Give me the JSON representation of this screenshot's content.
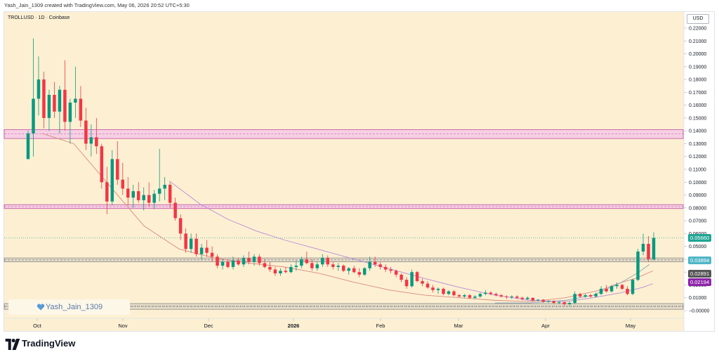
{
  "header": {
    "created_by": "Yash_Jain_1309 created with TradingView.com, May 06, 2026 20:52 UTC+5:30"
  },
  "symbol": {
    "label": "TROLLUSD · 1D · Coinbase"
  },
  "currency": "USD",
  "watermark": {
    "text": "Yash_Jain_1309",
    "icon": "heart-icon"
  },
  "footer": {
    "brand": "TradingView",
    "logo_icon": "tradingview-logo-icon"
  },
  "colors": {
    "background": "#fdf0d2",
    "up": "#089981",
    "down": "#f23645",
    "zone_pink": "#f3c6e8",
    "zone_pink_border": "#c04ea0",
    "zone_grey": "#ddd6c6",
    "ma_fast": "#d98a80",
    "ma_slow": "#b88ad8",
    "ma_grey": "#8aa6b8",
    "badge_current": "#1fa595",
    "badge_support": "#4fb6c8",
    "badge_grey": "#555555",
    "badge_purple": "#8e24aa"
  },
  "price_badges": [
    {
      "value": "0.05660",
      "price": 0.0566,
      "color": "#1fa595"
    },
    {
      "value": "0.03894",
      "price": 0.03894,
      "color": "#4fb6c8"
    },
    {
      "value": "0.02891",
      "price": 0.02891,
      "color": "#555555"
    },
    {
      "value": "0.02194",
      "price": 0.02194,
      "color": "#8e24aa"
    }
  ],
  "chart_data": {
    "type": "candlestick",
    "symbol": "TROLLUSD",
    "interval": "1D",
    "exchange": "Coinbase",
    "ylim": [
      0.0,
      0.22
    ],
    "y_ticks": [
      "0.22000",
      "0.21000",
      "0.20000",
      "0.19000",
      "0.18000",
      "0.17000",
      "0.16000",
      "0.15000",
      "0.14000",
      "0.13000",
      "0.12000",
      "0.11000",
      "0.10000",
      "0.09000",
      "0.08000",
      "0.07000",
      "0.06000",
      "0.05000",
      "0.04000",
      "0.03000",
      "0.02000",
      "0.01000",
      "0.00000"
    ],
    "x_ticks": [
      "Oct",
      "Nov",
      "Dec",
      "2026",
      "Feb",
      "Mar",
      "Apr",
      "May"
    ],
    "x_tick_days": [
      24,
      146,
      268,
      389,
      513,
      624,
      748,
      869
    ],
    "zones": [
      {
        "from": 0.134,
        "to": 0.141,
        "type": "resistance"
      },
      {
        "from": 0.0795,
        "to": 0.0825,
        "type": "resistance"
      },
      {
        "from": 0.038,
        "to": 0.041,
        "type": "support"
      },
      {
        "from": 0.001,
        "to": 0.0055,
        "type": "support"
      }
    ],
    "dotted_lines": [
      0.0566,
      0.0035
    ],
    "candles": [
      {
        "o": 0.118,
        "h": 0.14,
        "l": 0.118,
        "c": 0.138
      },
      {
        "o": 0.138,
        "h": 0.212,
        "l": 0.12,
        "c": 0.165
      },
      {
        "o": 0.165,
        "h": 0.198,
        "l": 0.152,
        "c": 0.18
      },
      {
        "o": 0.18,
        "h": 0.186,
        "l": 0.142,
        "c": 0.15
      },
      {
        "o": 0.15,
        "h": 0.172,
        "l": 0.14,
        "c": 0.168
      },
      {
        "o": 0.168,
        "h": 0.178,
        "l": 0.15,
        "c": 0.155
      },
      {
        "o": 0.155,
        "h": 0.175,
        "l": 0.138,
        "c": 0.172
      },
      {
        "o": 0.172,
        "h": 0.195,
        "l": 0.14,
        "c": 0.147
      },
      {
        "o": 0.147,
        "h": 0.165,
        "l": 0.13,
        "c": 0.162
      },
      {
        "o": 0.162,
        "h": 0.19,
        "l": 0.15,
        "c": 0.165
      },
      {
        "o": 0.165,
        "h": 0.175,
        "l": 0.143,
        "c": 0.148
      },
      {
        "o": 0.148,
        "h": 0.158,
        "l": 0.125,
        "c": 0.13
      },
      {
        "o": 0.13,
        "h": 0.145,
        "l": 0.12,
        "c": 0.135
      },
      {
        "o": 0.135,
        "h": 0.15,
        "l": 0.122,
        "c": 0.128
      },
      {
        "o": 0.128,
        "h": 0.13,
        "l": 0.095,
        "c": 0.1
      },
      {
        "o": 0.1,
        "h": 0.112,
        "l": 0.075,
        "c": 0.085
      },
      {
        "o": 0.085,
        "h": 0.125,
        "l": 0.082,
        "c": 0.118
      },
      {
        "o": 0.118,
        "h": 0.132,
        "l": 0.098,
        "c": 0.102
      },
      {
        "o": 0.102,
        "h": 0.115,
        "l": 0.09,
        "c": 0.095
      },
      {
        "o": 0.095,
        "h": 0.104,
        "l": 0.082,
        "c": 0.088
      },
      {
        "o": 0.088,
        "h": 0.098,
        "l": 0.08,
        "c": 0.093
      },
      {
        "o": 0.093,
        "h": 0.1,
        "l": 0.084,
        "c": 0.086
      },
      {
        "o": 0.086,
        "h": 0.096,
        "l": 0.078,
        "c": 0.09
      },
      {
        "o": 0.09,
        "h": 0.1,
        "l": 0.081,
        "c": 0.084
      },
      {
        "o": 0.084,
        "h": 0.094,
        "l": 0.079,
        "c": 0.091
      },
      {
        "o": 0.091,
        "h": 0.126,
        "l": 0.085,
        "c": 0.095
      },
      {
        "o": 0.095,
        "h": 0.104,
        "l": 0.086,
        "c": 0.098
      },
      {
        "o": 0.098,
        "h": 0.1,
        "l": 0.08,
        "c": 0.084
      },
      {
        "o": 0.084,
        "h": 0.088,
        "l": 0.07,
        "c": 0.072
      },
      {
        "o": 0.072,
        "h": 0.075,
        "l": 0.055,
        "c": 0.06
      },
      {
        "o": 0.06,
        "h": 0.064,
        "l": 0.045,
        "c": 0.048
      },
      {
        "o": 0.048,
        "h": 0.06,
        "l": 0.045,
        "c": 0.056
      },
      {
        "o": 0.056,
        "h": 0.06,
        "l": 0.042,
        "c": 0.044
      },
      {
        "o": 0.044,
        "h": 0.052,
        "l": 0.04,
        "c": 0.049
      },
      {
        "o": 0.049,
        "h": 0.055,
        "l": 0.042,
        "c": 0.045
      },
      {
        "o": 0.045,
        "h": 0.05,
        "l": 0.038,
        "c": 0.042
      },
      {
        "o": 0.042,
        "h": 0.044,
        "l": 0.033,
        "c": 0.035
      },
      {
        "o": 0.035,
        "h": 0.04,
        "l": 0.032,
        "c": 0.038
      },
      {
        "o": 0.038,
        "h": 0.04,
        "l": 0.033,
        "c": 0.034
      },
      {
        "o": 0.034,
        "h": 0.042,
        "l": 0.032,
        "c": 0.039
      },
      {
        "o": 0.039,
        "h": 0.041,
        "l": 0.035,
        "c": 0.036
      },
      {
        "o": 0.036,
        "h": 0.043,
        "l": 0.034,
        "c": 0.041
      },
      {
        "o": 0.041,
        "h": 0.046,
        "l": 0.036,
        "c": 0.038
      },
      {
        "o": 0.038,
        "h": 0.044,
        "l": 0.035,
        "c": 0.042
      },
      {
        "o": 0.042,
        "h": 0.044,
        "l": 0.035,
        "c": 0.037
      },
      {
        "o": 0.037,
        "h": 0.04,
        "l": 0.033,
        "c": 0.034
      },
      {
        "o": 0.034,
        "h": 0.038,
        "l": 0.03,
        "c": 0.032
      },
      {
        "o": 0.032,
        "h": 0.034,
        "l": 0.027,
        "c": 0.029
      },
      {
        "o": 0.029,
        "h": 0.033,
        "l": 0.027,
        "c": 0.031
      },
      {
        "o": 0.031,
        "h": 0.034,
        "l": 0.029,
        "c": 0.03
      },
      {
        "o": 0.03,
        "h": 0.036,
        "l": 0.029,
        "c": 0.034
      },
      {
        "o": 0.034,
        "h": 0.039,
        "l": 0.031,
        "c": 0.035
      },
      {
        "o": 0.035,
        "h": 0.042,
        "l": 0.033,
        "c": 0.04
      },
      {
        "o": 0.04,
        "h": 0.046,
        "l": 0.036,
        "c": 0.037
      },
      {
        "o": 0.037,
        "h": 0.04,
        "l": 0.031,
        "c": 0.033
      },
      {
        "o": 0.033,
        "h": 0.038,
        "l": 0.031,
        "c": 0.036
      },
      {
        "o": 0.036,
        "h": 0.044,
        "l": 0.034,
        "c": 0.041
      },
      {
        "o": 0.041,
        "h": 0.043,
        "l": 0.034,
        "c": 0.036
      },
      {
        "o": 0.036,
        "h": 0.038,
        "l": 0.032,
        "c": 0.034
      },
      {
        "o": 0.034,
        "h": 0.037,
        "l": 0.031,
        "c": 0.035
      },
      {
        "o": 0.035,
        "h": 0.036,
        "l": 0.03,
        "c": 0.031
      },
      {
        "o": 0.031,
        "h": 0.034,
        "l": 0.028,
        "c": 0.033
      },
      {
        "o": 0.033,
        "h": 0.035,
        "l": 0.029,
        "c": 0.03
      },
      {
        "o": 0.03,
        "h": 0.033,
        "l": 0.026,
        "c": 0.028
      },
      {
        "o": 0.028,
        "h": 0.034,
        "l": 0.027,
        "c": 0.033
      },
      {
        "o": 0.033,
        "h": 0.042,
        "l": 0.031,
        "c": 0.038
      },
      {
        "o": 0.038,
        "h": 0.042,
        "l": 0.034,
        "c": 0.036
      },
      {
        "o": 0.036,
        "h": 0.038,
        "l": 0.032,
        "c": 0.034
      },
      {
        "o": 0.034,
        "h": 0.036,
        "l": 0.03,
        "c": 0.032
      },
      {
        "o": 0.032,
        "h": 0.034,
        "l": 0.029,
        "c": 0.031
      },
      {
        "o": 0.031,
        "h": 0.032,
        "l": 0.026,
        "c": 0.028
      },
      {
        "o": 0.028,
        "h": 0.029,
        "l": 0.022,
        "c": 0.024
      },
      {
        "o": 0.024,
        "h": 0.026,
        "l": 0.017,
        "c": 0.019
      },
      {
        "o": 0.019,
        "h": 0.032,
        "l": 0.018,
        "c": 0.03
      },
      {
        "o": 0.03,
        "h": 0.031,
        "l": 0.022,
        "c": 0.023
      },
      {
        "o": 0.023,
        "h": 0.025,
        "l": 0.019,
        "c": 0.021
      },
      {
        "o": 0.021,
        "h": 0.023,
        "l": 0.017,
        "c": 0.018
      },
      {
        "o": 0.018,
        "h": 0.02,
        "l": 0.014,
        "c": 0.016
      },
      {
        "o": 0.016,
        "h": 0.018,
        "l": 0.013,
        "c": 0.017
      },
      {
        "o": 0.017,
        "h": 0.018,
        "l": 0.012,
        "c": 0.013
      },
      {
        "o": 0.013,
        "h": 0.016,
        "l": 0.012,
        "c": 0.015
      },
      {
        "o": 0.015,
        "h": 0.016,
        "l": 0.011,
        "c": 0.012
      },
      {
        "o": 0.012,
        "h": 0.013,
        "l": 0.01,
        "c": 0.011
      },
      {
        "o": 0.011,
        "h": 0.013,
        "l": 0.01,
        "c": 0.012
      },
      {
        "o": 0.012,
        "h": 0.013,
        "l": 0.009,
        "c": 0.01
      },
      {
        "o": 0.01,
        "h": 0.012,
        "l": 0.009,
        "c": 0.011
      },
      {
        "o": 0.011,
        "h": 0.014,
        "l": 0.01,
        "c": 0.013
      },
      {
        "o": 0.013,
        "h": 0.016,
        "l": 0.012,
        "c": 0.014
      },
      {
        "o": 0.014,
        "h": 0.015,
        "l": 0.012,
        "c": 0.013
      },
      {
        "o": 0.013,
        "h": 0.014,
        "l": 0.011,
        "c": 0.012
      },
      {
        "o": 0.012,
        "h": 0.013,
        "l": 0.01,
        "c": 0.011
      },
      {
        "o": 0.011,
        "h": 0.012,
        "l": 0.009,
        "c": 0.0105
      },
      {
        "o": 0.0105,
        "h": 0.012,
        "l": 0.009,
        "c": 0.011
      },
      {
        "o": 0.011,
        "h": 0.012,
        "l": 0.009,
        "c": 0.01
      },
      {
        "o": 0.01,
        "h": 0.011,
        "l": 0.008,
        "c": 0.009
      },
      {
        "o": 0.009,
        "h": 0.011,
        "l": 0.008,
        "c": 0.01
      },
      {
        "o": 0.01,
        "h": 0.01,
        "l": 0.007,
        "c": 0.008
      },
      {
        "o": 0.008,
        "h": 0.009,
        "l": 0.007,
        "c": 0.0085
      },
      {
        "o": 0.0085,
        "h": 0.009,
        "l": 0.006,
        "c": 0.007
      },
      {
        "o": 0.007,
        "h": 0.008,
        "l": 0.006,
        "c": 0.0075
      },
      {
        "o": 0.0075,
        "h": 0.008,
        "l": 0.005,
        "c": 0.006
      },
      {
        "o": 0.006,
        "h": 0.007,
        "l": 0.005,
        "c": 0.0065
      },
      {
        "o": 0.0065,
        "h": 0.007,
        "l": 0.004,
        "c": 0.005
      },
      {
        "o": 0.005,
        "h": 0.007,
        "l": 0.004,
        "c": 0.006
      },
      {
        "o": 0.006,
        "h": 0.015,
        "l": 0.005,
        "c": 0.013
      },
      {
        "o": 0.013,
        "h": 0.014,
        "l": 0.01,
        "c": 0.011
      },
      {
        "o": 0.011,
        "h": 0.013,
        "l": 0.01,
        "c": 0.012
      },
      {
        "o": 0.012,
        "h": 0.013,
        "l": 0.01,
        "c": 0.011
      },
      {
        "o": 0.011,
        "h": 0.014,
        "l": 0.01,
        "c": 0.013
      },
      {
        "o": 0.013,
        "h": 0.019,
        "l": 0.012,
        "c": 0.017
      },
      {
        "o": 0.017,
        "h": 0.02,
        "l": 0.014,
        "c": 0.015
      },
      {
        "o": 0.015,
        "h": 0.02,
        "l": 0.014,
        "c": 0.019
      },
      {
        "o": 0.019,
        "h": 0.022,
        "l": 0.017,
        "c": 0.02
      },
      {
        "o": 0.02,
        "h": 0.021,
        "l": 0.016,
        "c": 0.017
      },
      {
        "o": 0.017,
        "h": 0.019,
        "l": 0.012,
        "c": 0.013
      },
      {
        "o": 0.013,
        "h": 0.025,
        "l": 0.012,
        "c": 0.024
      },
      {
        "o": 0.024,
        "h": 0.048,
        "l": 0.023,
        "c": 0.046
      },
      {
        "o": 0.046,
        "h": 0.06,
        "l": 0.043,
        "c": 0.052
      },
      {
        "o": 0.052,
        "h": 0.058,
        "l": 0.038,
        "c": 0.04
      },
      {
        "o": 0.04,
        "h": 0.061,
        "l": 0.039,
        "c": 0.0566
      }
    ],
    "moving_averages": [
      {
        "label": "ma-fast",
        "color": "#d98a80",
        "points": [
          [
            55,
            0.138
          ],
          [
            100,
            0.13
          ],
          [
            150,
            0.098
          ],
          [
            200,
            0.066
          ],
          [
            250,
            0.048
          ],
          [
            300,
            0.041
          ],
          [
            350,
            0.037
          ],
          [
            400,
            0.034
          ],
          [
            450,
            0.029
          ],
          [
            500,
            0.022
          ],
          [
            550,
            0.016
          ],
          [
            600,
            0.012
          ],
          [
            650,
            0.01
          ],
          [
            700,
            0.008
          ],
          [
            750,
            0.007
          ],
          [
            800,
            0.01
          ],
          [
            850,
            0.016
          ],
          [
            880,
            0.022
          ],
          [
            900,
            0.025
          ],
          [
            925,
            0.031
          ]
        ]
      },
      {
        "label": "ma-slow",
        "color": "#b88ad8",
        "points": [
          [
            236,
            0.101
          ],
          [
            280,
            0.083
          ],
          [
            320,
            0.071
          ],
          [
            360,
            0.062
          ],
          [
            400,
            0.055
          ],
          [
            440,
            0.049
          ],
          [
            480,
            0.043
          ],
          [
            520,
            0.037
          ],
          [
            560,
            0.031
          ],
          [
            600,
            0.025
          ],
          [
            650,
            0.018
          ],
          [
            700,
            0.012
          ],
          [
            750,
            0.008
          ],
          [
            800,
            0.007
          ],
          [
            840,
            0.01
          ],
          [
            880,
            0.014
          ],
          [
            910,
            0.018
          ],
          [
            925,
            0.021
          ]
        ]
      },
      {
        "label": "ma-grey",
        "color": "#8aa6b8",
        "points": [
          [
            700,
            0.006
          ],
          [
            750,
            0.006
          ],
          [
            800,
            0.008
          ],
          [
            840,
            0.012
          ],
          [
            880,
            0.022
          ],
          [
            905,
            0.03
          ],
          [
            920,
            0.036
          ]
        ]
      }
    ]
  }
}
